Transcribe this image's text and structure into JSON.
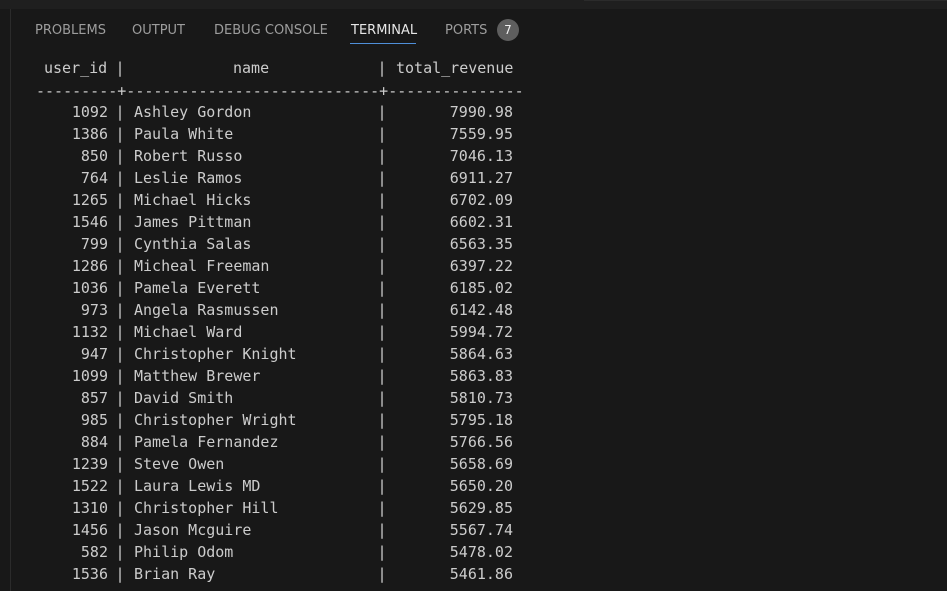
{
  "panel": {
    "tabs": [
      "PROBLEMS",
      "OUTPUT",
      "DEBUG CONSOLE",
      "TERMINAL",
      "PORTS"
    ],
    "active_tab": "TERMINAL",
    "ports_badge": "7"
  },
  "table": {
    "headers": [
      "user_id",
      "name",
      "total_revenue"
    ],
    "separator": "---------+----------------------------+---------------",
    "rows": [
      [
        "1092",
        "Ashley Gordon",
        "7990.98"
      ],
      [
        "1386",
        "Paula White",
        "7559.95"
      ],
      [
        "850",
        "Robert Russo",
        "7046.13"
      ],
      [
        "764",
        "Leslie Ramos",
        "6911.27"
      ],
      [
        "1265",
        "Michael Hicks",
        "6702.09"
      ],
      [
        "1546",
        "James Pittman",
        "6602.31"
      ],
      [
        "799",
        "Cynthia Salas",
        "6563.35"
      ],
      [
        "1286",
        "Micheal Freeman",
        "6397.22"
      ],
      [
        "1036",
        "Pamela Everett",
        "6185.02"
      ],
      [
        "973",
        "Angela Rasmussen",
        "6142.48"
      ],
      [
        "1132",
        "Michael Ward",
        "5994.72"
      ],
      [
        "947",
        "Christopher Knight",
        "5864.63"
      ],
      [
        "1099",
        "Matthew Brewer",
        "5863.83"
      ],
      [
        "857",
        "David Smith",
        "5810.73"
      ],
      [
        "985",
        "Christopher Wright",
        "5795.18"
      ],
      [
        "884",
        "Pamela Fernandez",
        "5766.56"
      ],
      [
        "1239",
        "Steve Owen",
        "5658.69"
      ],
      [
        "1522",
        "Laura Lewis MD",
        "5650.20"
      ],
      [
        "1310",
        "Christopher Hill",
        "5629.85"
      ],
      [
        "1456",
        "Jason Mcguire",
        "5567.74"
      ],
      [
        "582",
        "Philip Odom",
        "5478.02"
      ],
      [
        "1536",
        "Brian Ray",
        "5461.86"
      ]
    ]
  },
  "colors": {
    "background": "#181818",
    "text": "#cccccc",
    "tab_inactive": "#9d9d9d",
    "tab_active": "#e7e7e7",
    "accent_underline": "#4f8fd9",
    "badge_bg": "#5e5e5e"
  }
}
